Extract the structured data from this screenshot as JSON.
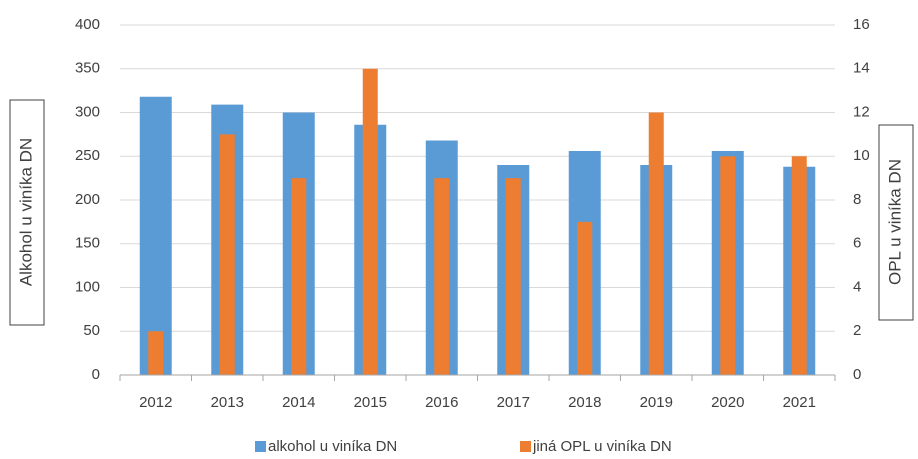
{
  "chart_data": {
    "type": "bar",
    "categories": [
      "2012",
      "2013",
      "2014",
      "2015",
      "2016",
      "2017",
      "2018",
      "2019",
      "2020",
      "2021"
    ],
    "series": [
      {
        "name": "alkohol u viníka DN",
        "color": "#5b9bd5",
        "values": [
          318,
          309,
          300,
          286,
          268,
          240,
          256,
          240,
          256,
          238
        ]
      },
      {
        "name": "jiná OPL u viníka DN",
        "color": "#ed7d31",
        "axis": "y2",
        "values": [
          2,
          11,
          9,
          14,
          9,
          9,
          7,
          12,
          10,
          10
        ]
      }
    ],
    "ylabel": "Alkohol u viníka DN",
    "y2label": "OPL u viníka DN",
    "ylim": [
      0,
      400
    ],
    "yticks": [
      0,
      50,
      100,
      150,
      200,
      250,
      300,
      350,
      400
    ],
    "y2lim": [
      0,
      16
    ],
    "y2ticks": [
      0,
      2,
      4,
      6,
      8,
      10,
      12,
      14,
      16
    ],
    "grid": true,
    "legend": "bottom"
  }
}
